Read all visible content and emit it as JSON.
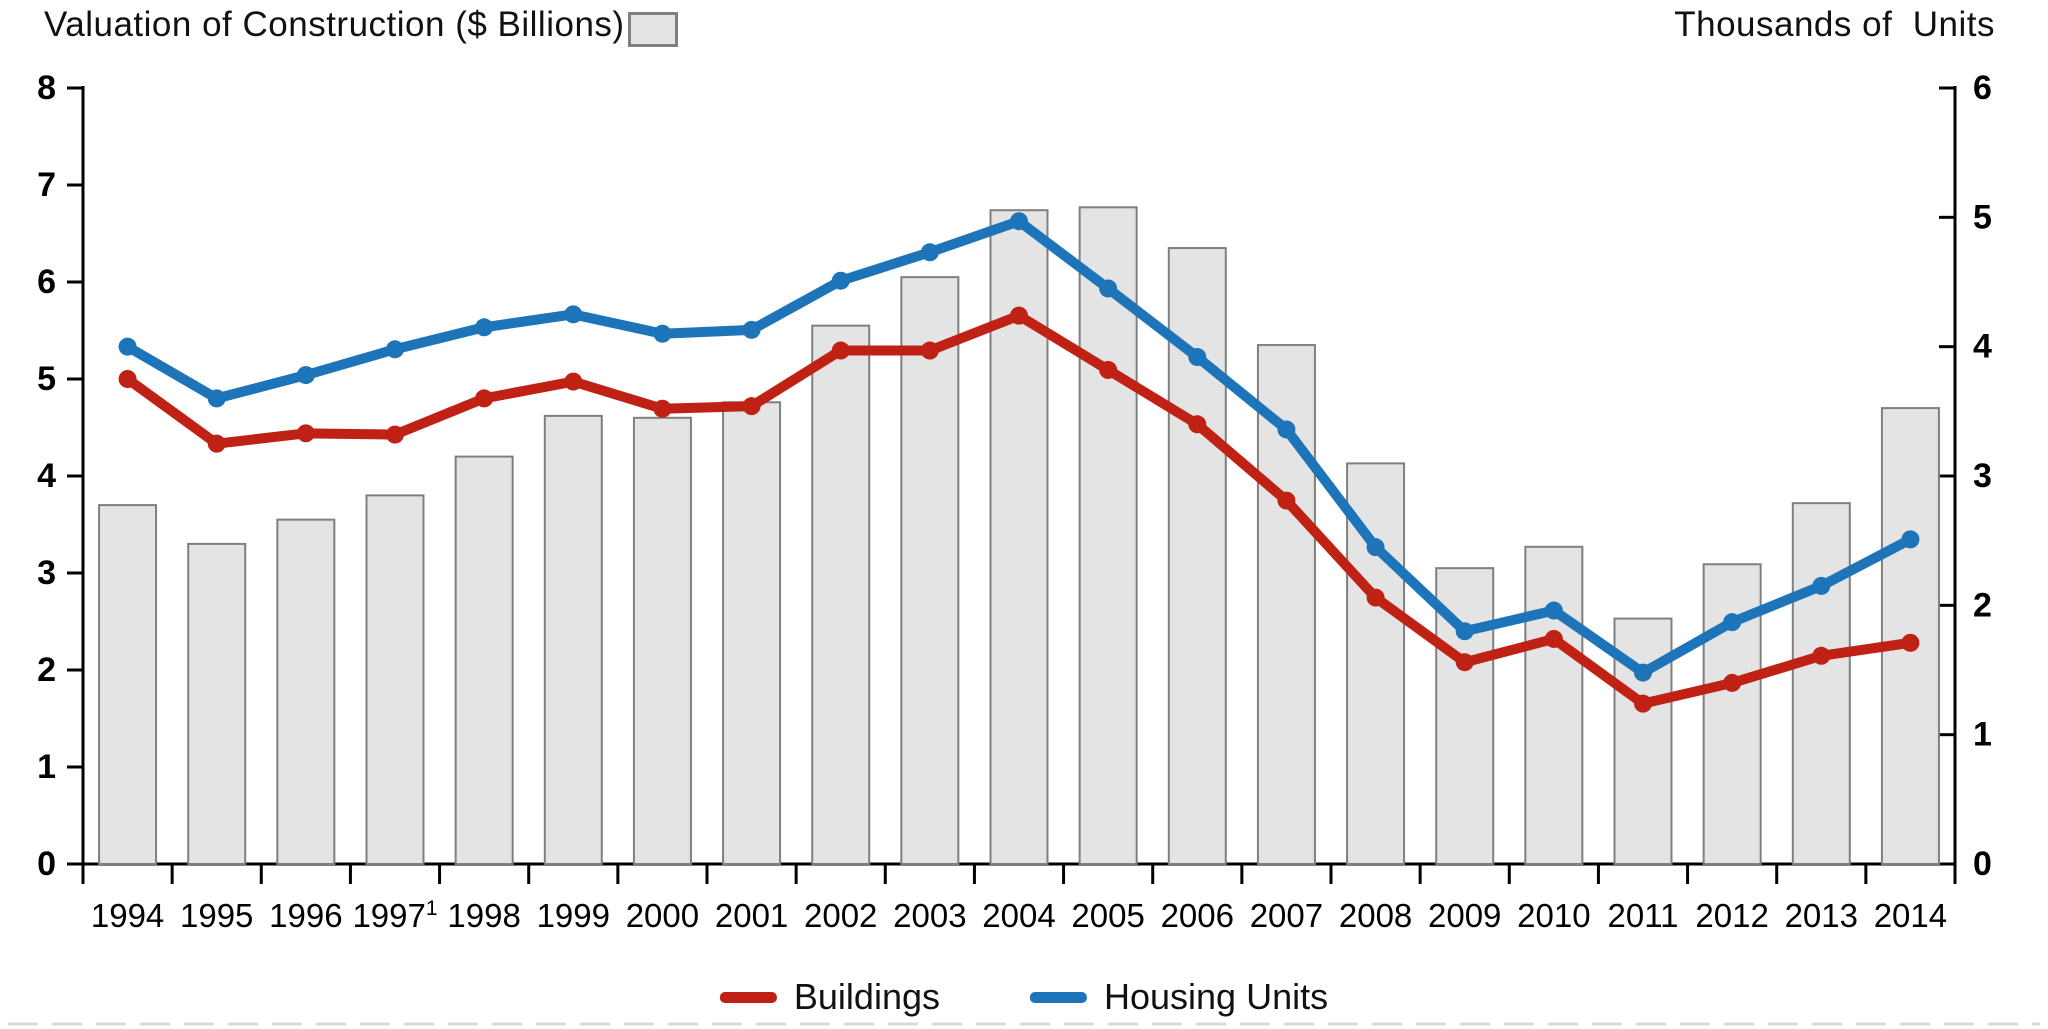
{
  "header": {
    "left_axis_title": "Valuation of Construction ($ Billions)",
    "right_axis_title": "Thousands of  Units"
  },
  "legend": {
    "items": [
      {
        "label": "Buildings",
        "color": "#c02115"
      },
      {
        "label": "Housing Units",
        "color": "#1e74b8"
      }
    ]
  },
  "colors": {
    "bar_fill": "#e4e4e4",
    "bar_border": "#7f7f7f",
    "buildings_line": "#c02115",
    "housing_units_line": "#1e74b8",
    "axis": "#000000",
    "bottom_divider": "#d9d9d9"
  },
  "chart_data": {
    "type": "combo-bar-line",
    "title": "Valuation of Construction ($ Billions)",
    "right_title": "Thousands of  Units",
    "categories": [
      "1994",
      "1995",
      "1996",
      "1997",
      "1998",
      "1999",
      "2000",
      "2001",
      "2002",
      "2003",
      "2004",
      "2005",
      "2006",
      "2007",
      "2008",
      "2009",
      "2010",
      "2011",
      "2012",
      "2013",
      "2014"
    ],
    "superscript_year": {
      "year": "1997",
      "marker": "1"
    },
    "bars": {
      "name": "Valuation of Construction ($ Billions)",
      "axis": "left",
      "values": [
        3.7,
        3.3,
        3.55,
        3.8,
        4.2,
        4.62,
        4.6,
        4.76,
        5.55,
        6.05,
        6.74,
        6.77,
        6.35,
        5.35,
        4.13,
        3.05,
        3.27,
        2.53,
        3.09,
        3.72,
        4.7
      ]
    },
    "series": [
      {
        "name": "Buildings",
        "axis": "right",
        "color": "#c02115",
        "values": [
          3.75,
          3.25,
          3.33,
          3.32,
          3.6,
          3.73,
          3.52,
          3.54,
          3.97,
          3.97,
          4.24,
          3.82,
          3.4,
          2.81,
          2.06,
          1.56,
          1.74,
          1.24,
          1.4,
          1.61,
          1.71
        ]
      },
      {
        "name": "Housing Units",
        "axis": "right",
        "color": "#1e74b8",
        "values": [
          4.0,
          3.6,
          3.78,
          3.98,
          4.15,
          4.25,
          4.1,
          4.13,
          4.51,
          4.73,
          4.97,
          4.45,
          3.92,
          3.36,
          2.45,
          1.8,
          1.96,
          1.48,
          1.87,
          2.15,
          2.51
        ]
      }
    ],
    "left_axis": {
      "label": "Valuation of Construction ($ Billions)",
      "min": 0,
      "max": 8,
      "ticks": [
        "0",
        "1",
        "2",
        "3",
        "4",
        "5",
        "6",
        "7",
        "8"
      ]
    },
    "right_axis": {
      "label": "Thousands of Units",
      "min": 0,
      "max": 6,
      "ticks": [
        "0",
        "1",
        "2",
        "3",
        "4",
        "5",
        "6"
      ]
    },
    "grid": false,
    "legend_position": "bottom-center"
  }
}
